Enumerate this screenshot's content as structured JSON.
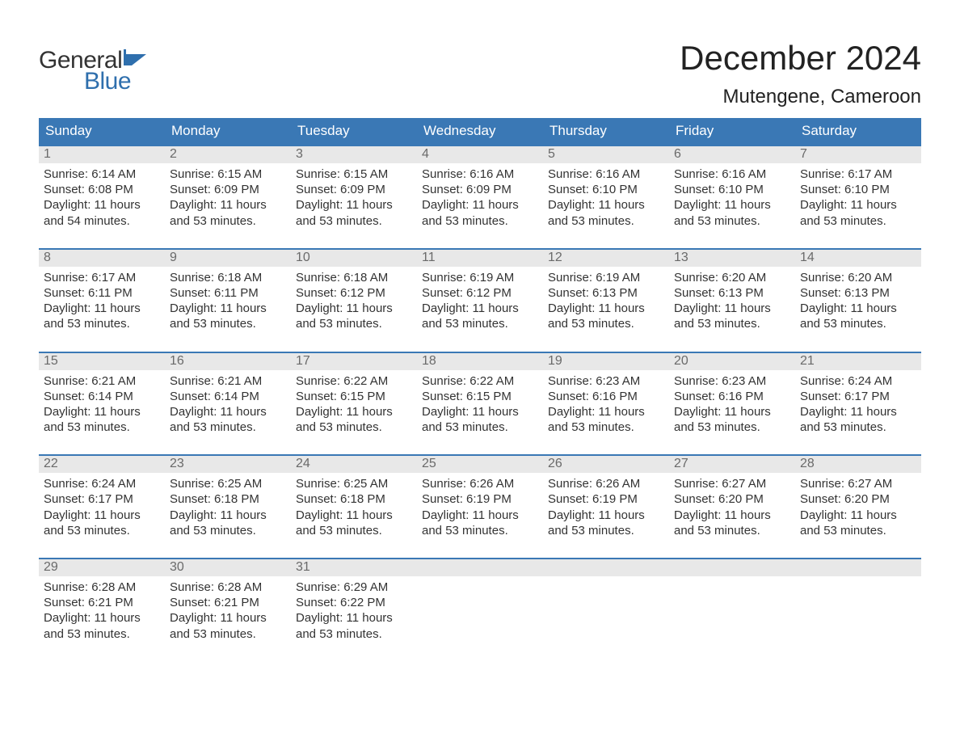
{
  "brand": {
    "word1": "General",
    "word2": "Blue"
  },
  "title": "December 2024",
  "location": "Mutengene, Cameroon",
  "colors": {
    "header_bg": "#3a78b5",
    "header_text": "#ffffff",
    "daynum_bg": "#e8e8e8",
    "daynum_text": "#6a6a6a",
    "body_text": "#333333",
    "accent_blue": "#2f6fad",
    "row_border": "#3a78b5",
    "page_bg": "#ffffff"
  },
  "typography": {
    "title_fontsize": 42,
    "location_fontsize": 24,
    "weekday_fontsize": 17,
    "daynum_fontsize": 16,
    "body_fontsize": 15,
    "logo_fontsize": 30
  },
  "weekdays": [
    "Sunday",
    "Monday",
    "Tuesday",
    "Wednesday",
    "Thursday",
    "Friday",
    "Saturday"
  ],
  "weeks": [
    [
      {
        "n": "1",
        "sr": "Sunrise: 6:14 AM",
        "ss": "Sunset: 6:08 PM",
        "d1": "Daylight: 11 hours",
        "d2": "and 54 minutes."
      },
      {
        "n": "2",
        "sr": "Sunrise: 6:15 AM",
        "ss": "Sunset: 6:09 PM",
        "d1": "Daylight: 11 hours",
        "d2": "and 53 minutes."
      },
      {
        "n": "3",
        "sr": "Sunrise: 6:15 AM",
        "ss": "Sunset: 6:09 PM",
        "d1": "Daylight: 11 hours",
        "d2": "and 53 minutes."
      },
      {
        "n": "4",
        "sr": "Sunrise: 6:16 AM",
        "ss": "Sunset: 6:09 PM",
        "d1": "Daylight: 11 hours",
        "d2": "and 53 minutes."
      },
      {
        "n": "5",
        "sr": "Sunrise: 6:16 AM",
        "ss": "Sunset: 6:10 PM",
        "d1": "Daylight: 11 hours",
        "d2": "and 53 minutes."
      },
      {
        "n": "6",
        "sr": "Sunrise: 6:16 AM",
        "ss": "Sunset: 6:10 PM",
        "d1": "Daylight: 11 hours",
        "d2": "and 53 minutes."
      },
      {
        "n": "7",
        "sr": "Sunrise: 6:17 AM",
        "ss": "Sunset: 6:10 PM",
        "d1": "Daylight: 11 hours",
        "d2": "and 53 minutes."
      }
    ],
    [
      {
        "n": "8",
        "sr": "Sunrise: 6:17 AM",
        "ss": "Sunset: 6:11 PM",
        "d1": "Daylight: 11 hours",
        "d2": "and 53 minutes."
      },
      {
        "n": "9",
        "sr": "Sunrise: 6:18 AM",
        "ss": "Sunset: 6:11 PM",
        "d1": "Daylight: 11 hours",
        "d2": "and 53 minutes."
      },
      {
        "n": "10",
        "sr": "Sunrise: 6:18 AM",
        "ss": "Sunset: 6:12 PM",
        "d1": "Daylight: 11 hours",
        "d2": "and 53 minutes."
      },
      {
        "n": "11",
        "sr": "Sunrise: 6:19 AM",
        "ss": "Sunset: 6:12 PM",
        "d1": "Daylight: 11 hours",
        "d2": "and 53 minutes."
      },
      {
        "n": "12",
        "sr": "Sunrise: 6:19 AM",
        "ss": "Sunset: 6:13 PM",
        "d1": "Daylight: 11 hours",
        "d2": "and 53 minutes."
      },
      {
        "n": "13",
        "sr": "Sunrise: 6:20 AM",
        "ss": "Sunset: 6:13 PM",
        "d1": "Daylight: 11 hours",
        "d2": "and 53 minutes."
      },
      {
        "n": "14",
        "sr": "Sunrise: 6:20 AM",
        "ss": "Sunset: 6:13 PM",
        "d1": "Daylight: 11 hours",
        "d2": "and 53 minutes."
      }
    ],
    [
      {
        "n": "15",
        "sr": "Sunrise: 6:21 AM",
        "ss": "Sunset: 6:14 PM",
        "d1": "Daylight: 11 hours",
        "d2": "and 53 minutes."
      },
      {
        "n": "16",
        "sr": "Sunrise: 6:21 AM",
        "ss": "Sunset: 6:14 PM",
        "d1": "Daylight: 11 hours",
        "d2": "and 53 minutes."
      },
      {
        "n": "17",
        "sr": "Sunrise: 6:22 AM",
        "ss": "Sunset: 6:15 PM",
        "d1": "Daylight: 11 hours",
        "d2": "and 53 minutes."
      },
      {
        "n": "18",
        "sr": "Sunrise: 6:22 AM",
        "ss": "Sunset: 6:15 PM",
        "d1": "Daylight: 11 hours",
        "d2": "and 53 minutes."
      },
      {
        "n": "19",
        "sr": "Sunrise: 6:23 AM",
        "ss": "Sunset: 6:16 PM",
        "d1": "Daylight: 11 hours",
        "d2": "and 53 minutes."
      },
      {
        "n": "20",
        "sr": "Sunrise: 6:23 AM",
        "ss": "Sunset: 6:16 PM",
        "d1": "Daylight: 11 hours",
        "d2": "and 53 minutes."
      },
      {
        "n": "21",
        "sr": "Sunrise: 6:24 AM",
        "ss": "Sunset: 6:17 PM",
        "d1": "Daylight: 11 hours",
        "d2": "and 53 minutes."
      }
    ],
    [
      {
        "n": "22",
        "sr": "Sunrise: 6:24 AM",
        "ss": "Sunset: 6:17 PM",
        "d1": "Daylight: 11 hours",
        "d2": "and 53 minutes."
      },
      {
        "n": "23",
        "sr": "Sunrise: 6:25 AM",
        "ss": "Sunset: 6:18 PM",
        "d1": "Daylight: 11 hours",
        "d2": "and 53 minutes."
      },
      {
        "n": "24",
        "sr": "Sunrise: 6:25 AM",
        "ss": "Sunset: 6:18 PM",
        "d1": "Daylight: 11 hours",
        "d2": "and 53 minutes."
      },
      {
        "n": "25",
        "sr": "Sunrise: 6:26 AM",
        "ss": "Sunset: 6:19 PM",
        "d1": "Daylight: 11 hours",
        "d2": "and 53 minutes."
      },
      {
        "n": "26",
        "sr": "Sunrise: 6:26 AM",
        "ss": "Sunset: 6:19 PM",
        "d1": "Daylight: 11 hours",
        "d2": "and 53 minutes."
      },
      {
        "n": "27",
        "sr": "Sunrise: 6:27 AM",
        "ss": "Sunset: 6:20 PM",
        "d1": "Daylight: 11 hours",
        "d2": "and 53 minutes."
      },
      {
        "n": "28",
        "sr": "Sunrise: 6:27 AM",
        "ss": "Sunset: 6:20 PM",
        "d1": "Daylight: 11 hours",
        "d2": "and 53 minutes."
      }
    ],
    [
      {
        "n": "29",
        "sr": "Sunrise: 6:28 AM",
        "ss": "Sunset: 6:21 PM",
        "d1": "Daylight: 11 hours",
        "d2": "and 53 minutes."
      },
      {
        "n": "30",
        "sr": "Sunrise: 6:28 AM",
        "ss": "Sunset: 6:21 PM",
        "d1": "Daylight: 11 hours",
        "d2": "and 53 minutes."
      },
      {
        "n": "31",
        "sr": "Sunrise: 6:29 AM",
        "ss": "Sunset: 6:22 PM",
        "d1": "Daylight: 11 hours",
        "d2": "and 53 minutes."
      },
      null,
      null,
      null,
      null
    ]
  ]
}
